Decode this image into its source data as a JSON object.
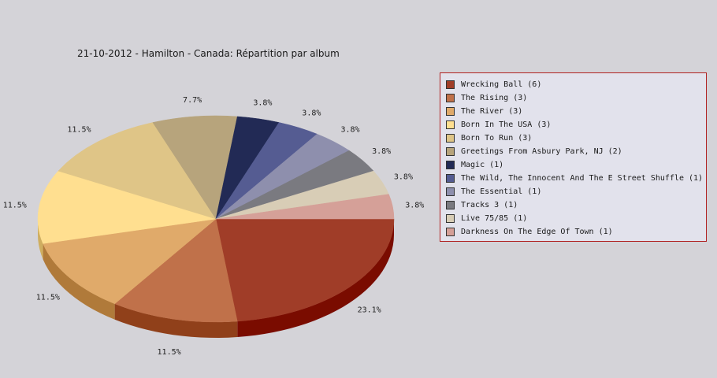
{
  "chart_data": {
    "type": "pie",
    "title": "21-10-2012 - Hamilton - Canada:  Répartition par album",
    "slices": [
      {
        "label": "Wrecking Ball (6)",
        "value": 6,
        "percent_label": "23.1%",
        "color": "#a03d28",
        "side_color": "#7a0c00"
      },
      {
        "label": "The Rising (3)",
        "value": 3,
        "percent_label": "11.5%",
        "color": "#c0714a",
        "side_color": "#90401a"
      },
      {
        "label": "The River (3)",
        "value": 3,
        "percent_label": "11.5%",
        "color": "#e0aa6a",
        "side_color": "#b07a3a"
      },
      {
        "label": "Born In The USA (3)",
        "value": 3,
        "percent_label": "11.5%",
        "color": "#ffdf90",
        "side_color": "#cfae60"
      },
      {
        "label": "Born To Run (3)",
        "value": 3,
        "percent_label": "11.5%",
        "color": "#dfc587",
        "side_color": "#af9557"
      },
      {
        "label": "Greetings From Asbury Park, NJ (2)",
        "value": 2,
        "percent_label": "7.7%",
        "color": "#b7a47c",
        "side_color": "#87744c"
      },
      {
        "label": "Magic (1)",
        "value": 1,
        "percent_label": "3.8%",
        "color": "#222a55",
        "side_color": "#101535"
      },
      {
        "label": "The Wild, The Innocent And The E Street Shuffle (1)",
        "value": 1,
        "percent_label": "3.8%",
        "color": "#555c92",
        "side_color": "#353c72"
      },
      {
        "label": "The Essential (1)",
        "value": 1,
        "percent_label": "3.8%",
        "color": "#8e8fad",
        "side_color": "#6e6f8d"
      },
      {
        "label": "Tracks 3 (1)",
        "value": 1,
        "percent_label": "3.8%",
        "color": "#7a7a80",
        "side_color": "#5a5a60"
      },
      {
        "label": "Live 75/85 (1)",
        "value": 1,
        "percent_label": "3.8%",
        "color": "#d8cdb6",
        "side_color": "#b8ad96"
      },
      {
        "label": "Darkness On The Edge Of Town (1)",
        "value": 1,
        "percent_label": "3.8%",
        "color": "#d5a098",
        "side_color": "#b58078"
      }
    ],
    "legend_position": "right",
    "three_d": true
  },
  "colors": {
    "background": "#d4d3d8",
    "legend_border": "#b02020",
    "legend_background": "#e2e2ec"
  }
}
